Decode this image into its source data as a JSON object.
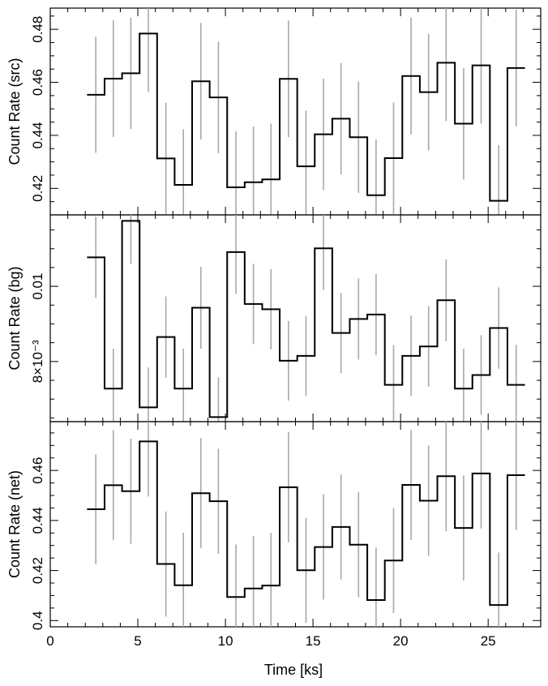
{
  "chart_data": {
    "type": "line",
    "style": "step-with-error-bars",
    "shared_x": {
      "label": "Time [ks]",
      "range": [
        0,
        28
      ],
      "ticks": [
        0,
        5,
        10,
        15,
        20,
        25
      ],
      "tick_labels": [
        "0",
        "5",
        "10",
        "15",
        "20",
        "25"
      ]
    },
    "colors": {
      "line": "#000000",
      "error_bar": "#a8a8a8"
    },
    "bin_centers": [
      2.6,
      3.6,
      4.6,
      5.6,
      6.6,
      7.6,
      8.6,
      9.6,
      10.6,
      11.6,
      12.6,
      13.6,
      14.6,
      15.6,
      16.6,
      17.6,
      18.6,
      19.6,
      20.6,
      21.6,
      22.6,
      23.6,
      24.6,
      25.6,
      26.6
    ],
    "bin_edges": [
      2.1,
      3.1,
      4.1,
      5.1,
      6.1,
      7.1,
      8.1,
      9.1,
      10.1,
      11.1,
      12.1,
      13.1,
      14.1,
      15.1,
      16.1,
      17.1,
      18.1,
      19.1,
      20.1,
      21.1,
      22.1,
      23.1,
      24.1,
      25.1,
      26.1,
      27.1
    ],
    "panels": [
      {
        "ylabel": "Count Rate (src)",
        "ylim": [
          0.41,
          0.488
        ],
        "yticks": [
          0.42,
          0.44,
          0.46,
          0.48
        ],
        "ytick_labels": [
          "0.42",
          "0.44",
          "0.46",
          "0.48"
        ],
        "values": [
          0.4553,
          0.4614,
          0.4634,
          0.4784,
          0.4313,
          0.4213,
          0.4604,
          0.4543,
          0.4204,
          0.4223,
          0.4234,
          0.4613,
          0.4283,
          0.4404,
          0.4463,
          0.4393,
          0.4174,
          0.4314,
          0.4624,
          0.4563,
          0.4674,
          0.4444,
          0.4664,
          0.4153,
          0.4654
        ],
        "errors": [
          0.0219,
          0.022,
          0.021,
          0.022,
          0.021,
          0.021,
          0.022,
          0.021,
          0.021,
          0.021,
          0.021,
          0.022,
          0.021,
          0.021,
          0.021,
          0.021,
          0.021,
          0.021,
          0.022,
          0.022,
          0.022,
          0.021,
          0.022,
          0.021,
          0.022
        ]
      },
      {
        "ylabel": "Count Rate (bg)",
        "ylim": [
          0.0064,
          0.0119
        ],
        "yticks": [
          0.008,
          0.01
        ],
        "ytick_labels": [
          "8×10⁻³",
          "0.01"
        ],
        "values": [
          0.01077,
          0.00728,
          0.01174,
          0.00678,
          0.00865,
          0.00728,
          0.00943,
          0.00652,
          0.01091,
          0.00953,
          0.00939,
          0.00802,
          0.00815,
          0.01101,
          0.00876,
          0.00913,
          0.00925,
          0.00738,
          0.00815,
          0.0084,
          0.00963,
          0.00728,
          0.00764,
          0.00889,
          0.00738
        ],
        "errors": [
          0.00108,
          0.00106,
          0.00115,
          0.00106,
          0.00108,
          0.00106,
          0.00109,
          0.00106,
          0.00111,
          0.00107,
          0.00107,
          0.00106,
          0.00106,
          0.00111,
          0.00107,
          0.00108,
          0.00108,
          0.00106,
          0.00107,
          0.00107,
          0.00109,
          0.00106,
          0.00106,
          0.00108,
          0.00106
        ]
      },
      {
        "ylabel": "Count Rate (net)",
        "ylim": [
          0.3975,
          0.4795
        ],
        "yticks": [
          0.4,
          0.42,
          0.44,
          0.46
        ],
        "ytick_labels": [
          "0.4",
          "0.42",
          "0.44",
          "0.46"
        ],
        "values": [
          0.4445,
          0.4541,
          0.4517,
          0.4716,
          0.4226,
          0.4141,
          0.4509,
          0.4477,
          0.4094,
          0.4128,
          0.414,
          0.4533,
          0.4201,
          0.4294,
          0.4374,
          0.4303,
          0.4082,
          0.424,
          0.4542,
          0.4479,
          0.4577,
          0.437,
          0.4588,
          0.4062,
          0.4581
        ],
        "errors": [
          0.0219,
          0.022,
          0.021,
          0.022,
          0.021,
          0.021,
          0.022,
          0.021,
          0.021,
          0.021,
          0.021,
          0.022,
          0.021,
          0.021,
          0.021,
          0.021,
          0.021,
          0.021,
          0.022,
          0.022,
          0.022,
          0.021,
          0.022,
          0.021,
          0.022
        ]
      }
    ]
  }
}
